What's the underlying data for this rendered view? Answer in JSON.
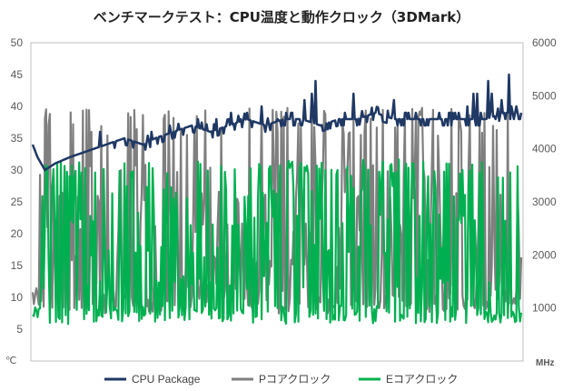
{
  "chart_data": {
    "type": "line",
    "title": "ベンチマークテスト：CPU温度と動作クロック（3DMark）",
    "y_left": {
      "unit": "℃",
      "ylim": [
        0,
        50
      ],
      "ticks": [
        "5",
        "10",
        "15",
        "20",
        "25",
        "30",
        "35",
        "40",
        "45",
        "50"
      ]
    },
    "y_right": {
      "unit": "MHz",
      "ylim": [
        0,
        6000
      ],
      "ticks": [
        "1000",
        "2000",
        "3000",
        "4000",
        "5000",
        "6000"
      ]
    },
    "x": {
      "count": 400
    },
    "grid": false,
    "legend_position": "bottom",
    "series": [
      {
        "name": "CPU Package",
        "axis": "left",
        "color": "#1f3864",
        "keypoints": [
          [
            0,
            34
          ],
          [
            4,
            32
          ],
          [
            10,
            30
          ],
          [
            18,
            31
          ],
          [
            30,
            32
          ],
          [
            45,
            33
          ],
          [
            60,
            34
          ],
          [
            75,
            35
          ],
          [
            90,
            34
          ],
          [
            100,
            35
          ],
          [
            115,
            36
          ],
          [
            130,
            37
          ],
          [
            145,
            36
          ],
          [
            160,
            37
          ],
          [
            175,
            38
          ],
          [
            190,
            37
          ],
          [
            205,
            38
          ],
          [
            220,
            38
          ],
          [
            235,
            37
          ],
          [
            250,
            38
          ],
          [
            265,
            38
          ],
          [
            280,
            39
          ],
          [
            295,
            38
          ],
          [
            310,
            38
          ],
          [
            325,
            38
          ],
          [
            340,
            38
          ],
          [
            355,
            38
          ],
          [
            370,
            38
          ],
          [
            385,
            39
          ],
          [
            399,
            39
          ]
        ],
        "spikes": [
          [
            55,
            36
          ],
          [
            97,
            36
          ],
          [
            112,
            37
          ],
          [
            135,
            38
          ],
          [
            150,
            38
          ],
          [
            162,
            39
          ],
          [
            170,
            38
          ],
          [
            187,
            40
          ],
          [
            200,
            38
          ],
          [
            222,
            41
          ],
          [
            228,
            42
          ],
          [
            231,
            44
          ],
          [
            262,
            42
          ],
          [
            295,
            41
          ],
          [
            305,
            39
          ],
          [
            330,
            38
          ],
          [
            345,
            39
          ],
          [
            355,
            40
          ],
          [
            360,
            42
          ],
          [
            363,
            42
          ],
          [
            372,
            44
          ],
          [
            375,
            42
          ],
          [
            378,
            38
          ],
          [
            383,
            41
          ],
          [
            389,
            45
          ],
          [
            395,
            40
          ]
        ]
      },
      {
        "name": "Pコアクロック",
        "axis": "right",
        "color": "#7f7f7f",
        "base": 1000,
        "peaks": [
          4800,
          4500,
          3700,
          3200,
          2600,
          2000,
          1500
        ]
      },
      {
        "name": "Eコアクロック",
        "axis": "right",
        "color": "#00b050",
        "base": 800,
        "peaks": [
          3800,
          3800,
          3700,
          3300,
          2800,
          2200,
          1600
        ]
      }
    ]
  }
}
